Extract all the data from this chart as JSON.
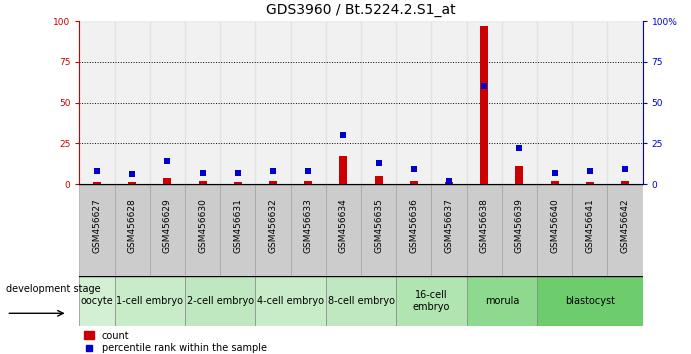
{
  "title": "GDS3960 / Bt.5224.2.S1_at",
  "samples": [
    "GSM456627",
    "GSM456628",
    "GSM456629",
    "GSM456630",
    "GSM456631",
    "GSM456632",
    "GSM456633",
    "GSM456634",
    "GSM456635",
    "GSM456636",
    "GSM456637",
    "GSM456638",
    "GSM456639",
    "GSM456640",
    "GSM456641",
    "GSM456642"
  ],
  "count_values": [
    1,
    1,
    4,
    2,
    1,
    2,
    2,
    17,
    5,
    2,
    1,
    97,
    11,
    2,
    1,
    2
  ],
  "percentile_values": [
    8,
    6,
    14,
    7,
    7,
    8,
    8,
    30,
    13,
    9,
    2,
    60,
    22,
    7,
    8,
    9
  ],
  "stages": [
    {
      "label": "oocyte",
      "cols": [
        0
      ],
      "color": "#d4f0d4"
    },
    {
      "label": "1-cell embryo",
      "cols": [
        1,
        2
      ],
      "color": "#c8ecc8"
    },
    {
      "label": "2-cell embryo",
      "cols": [
        3,
        4
      ],
      "color": "#c0e8c0"
    },
    {
      "label": "4-cell embryo",
      "cols": [
        5,
        6
      ],
      "color": "#c8ecc8"
    },
    {
      "label": "8-cell embryo",
      "cols": [
        7,
        8
      ],
      "color": "#c0e8c0"
    },
    {
      "label": "16-cell\nembryo",
      "cols": [
        9,
        10
      ],
      "color": "#b0e4b0"
    },
    {
      "label": "morula",
      "cols": [
        11,
        12
      ],
      "color": "#8dd98d"
    },
    {
      "label": "blastocyst",
      "cols": [
        13,
        14,
        15
      ],
      "color": "#6dcd6d"
    }
  ],
  "ylim": [
    0,
    100
  ],
  "yticks": [
    0,
    25,
    50,
    75,
    100
  ],
  "bar_color": "#cc0000",
  "point_color": "#0000cc",
  "title_fontsize": 10,
  "tick_label_fontsize": 6.5,
  "stage_fontsize": 7,
  "legend_fontsize": 7,
  "left_axis_color": "#cc0000",
  "right_axis_color": "#0000cc",
  "col_bg_color": "#d8d8d8",
  "dev_stage_label": "development stage"
}
